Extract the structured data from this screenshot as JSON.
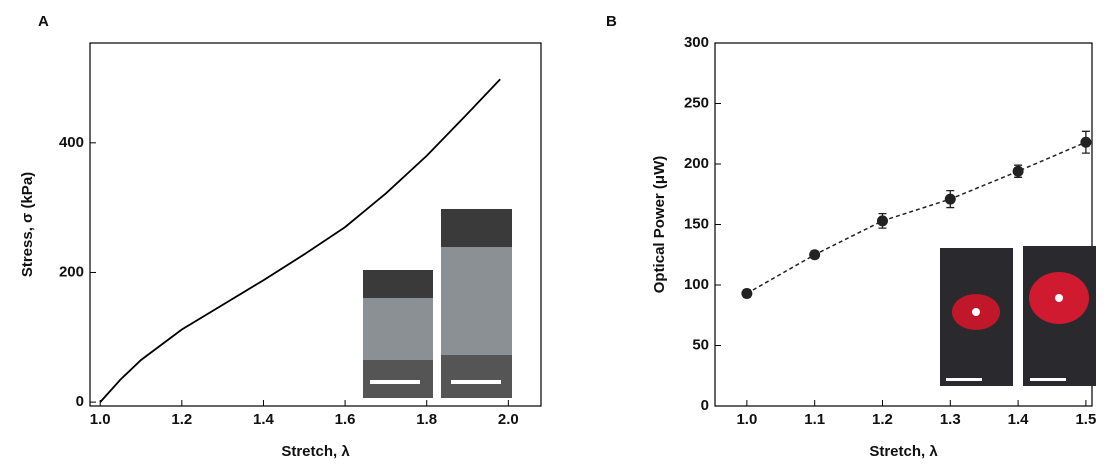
{
  "panels": [
    "A",
    "B"
  ],
  "chart_data": [
    {
      "type": "line",
      "color": "#000000",
      "x_label": "Stretch, λ",
      "y_label": "Stress, σ (kPa)",
      "x": [
        1.0,
        1.05,
        1.1,
        1.2,
        1.3,
        1.4,
        1.5,
        1.6,
        1.7,
        1.8,
        1.9,
        1.98
      ],
      "values": [
        0,
        35,
        65,
        112,
        150,
        188,
        228,
        270,
        322,
        380,
        445,
        498
      ],
      "xlim": [
        0.975,
        2.08
      ],
      "ylim": [
        -6,
        554
      ],
      "xticks": [
        {
          "value": 1,
          "label": "1.0"
        },
        1.2,
        1.4,
        1.6,
        1.8,
        {
          "value": 2,
          "label": "2.0"
        }
      ],
      "yticks": [
        0,
        200,
        400
      ]
    },
    {
      "type": "scatter",
      "color": "#222222",
      "line_dash": true,
      "x_label": "Stretch, λ",
      "y_label": "Optical Power (μW)",
      "x": [
        1.0,
        1.1,
        1.2,
        1.3,
        1.4,
        1.5
      ],
      "values": [
        93,
        125,
        153,
        171,
        194,
        218
      ],
      "errors": [
        3,
        3,
        6,
        7,
        5,
        9
      ],
      "xlim": [
        0.953,
        1.509
      ],
      "ylim": [
        0,
        300
      ],
      "xticks": [
        {
          "value": 1,
          "label": "1.0"
        },
        1.1,
        1.2,
        1.3,
        1.4,
        1.5
      ],
      "yticks": [
        0,
        50,
        100,
        150,
        200,
        250,
        300
      ]
    }
  ]
}
